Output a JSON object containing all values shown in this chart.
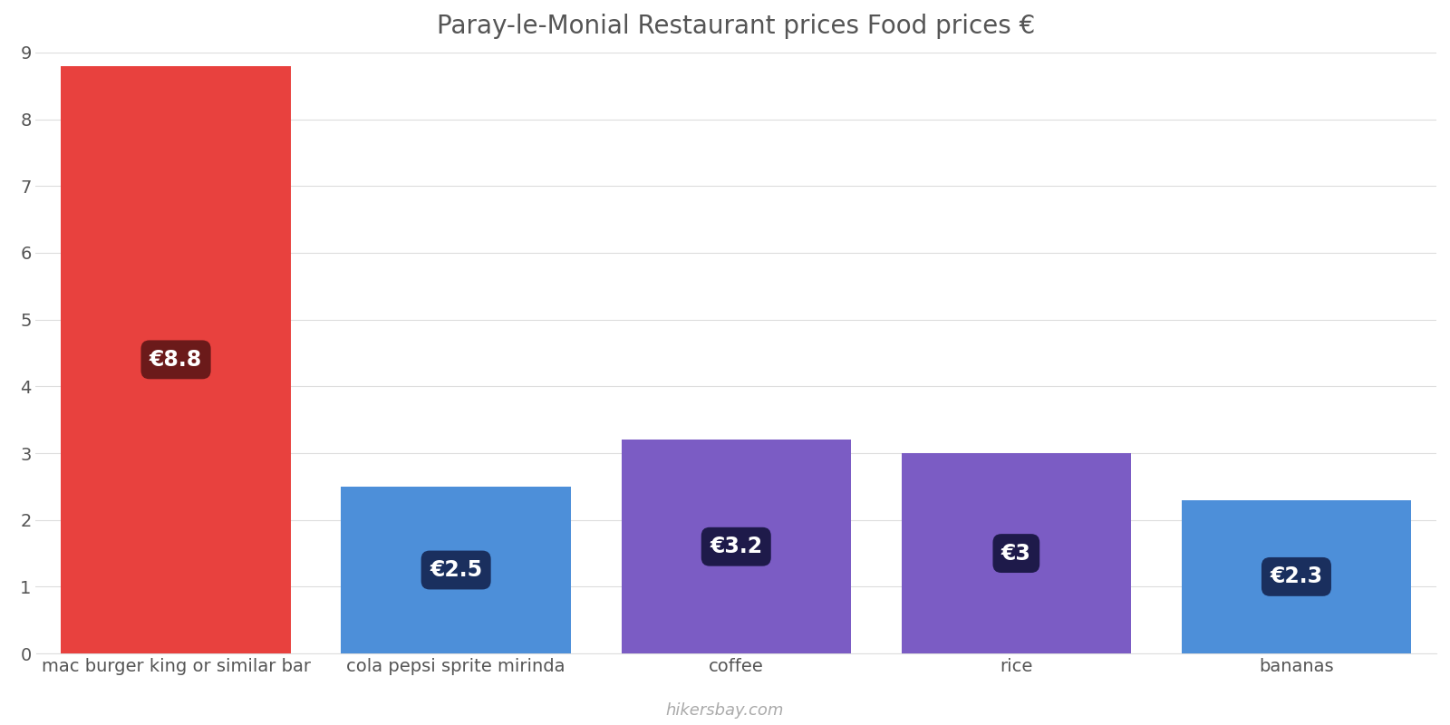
{
  "categories": [
    "mac burger king or similar bar",
    "cola pepsi sprite mirinda",
    "coffee",
    "rice",
    "bananas"
  ],
  "values": [
    8.8,
    2.5,
    3.2,
    3.0,
    2.3
  ],
  "bar_colors": [
    "#e8413e",
    "#4d8fd9",
    "#7b5cc4",
    "#7b5cc4",
    "#4d8fd9"
  ],
  "label_bg_colors": [
    "#6b1a1a",
    "#1a2f5e",
    "#1e1a4a",
    "#1e1a4a",
    "#1a2f5e"
  ],
  "labels": [
    "€8.8",
    "€2.5",
    "€3.2",
    "€3",
    "€2.3"
  ],
  "title": "Paray-le-Monial Restaurant prices Food prices €",
  "ylim": [
    0,
    9
  ],
  "yticks": [
    0,
    1,
    2,
    3,
    4,
    5,
    6,
    7,
    8,
    9
  ],
  "watermark": "hikersbay.com",
  "title_fontsize": 20,
  "tick_fontsize": 14,
  "label_fontsize": 17,
  "bar_width": 0.82,
  "background_color": "#ffffff",
  "grid_color": "#dddddd"
}
